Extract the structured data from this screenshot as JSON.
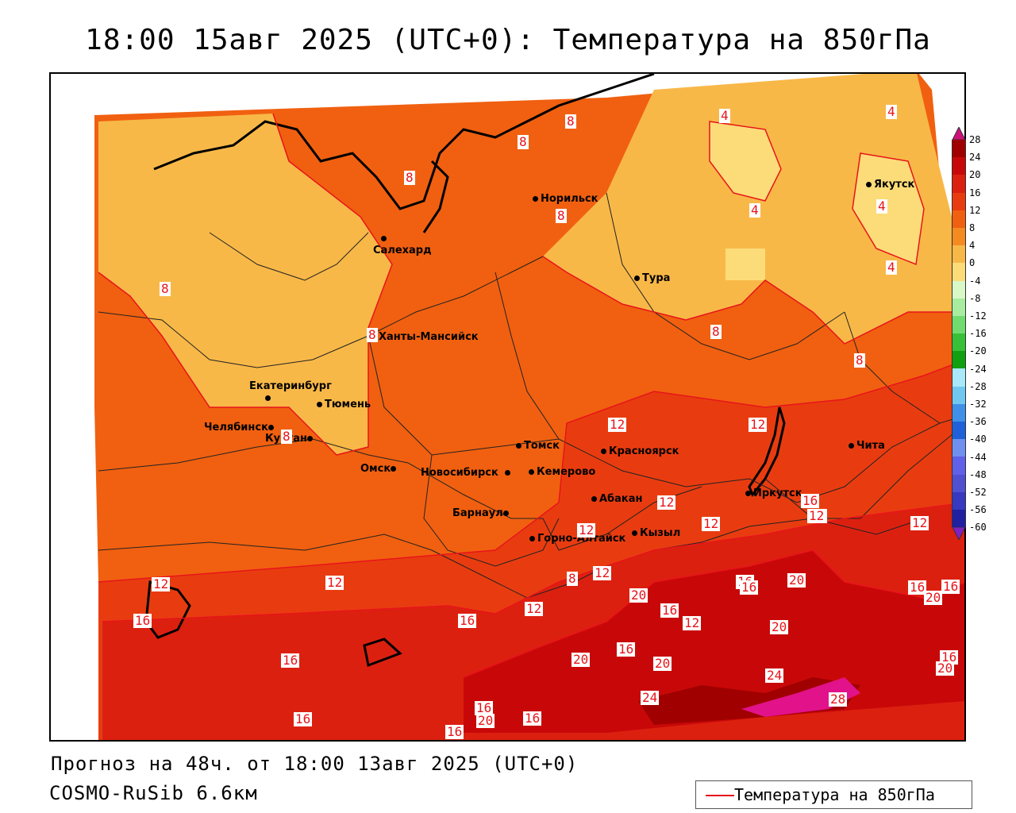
{
  "title": "18:00 15авг 2025 (UTC+0): Температура на 850гПа",
  "footer": {
    "forecast": "Прогноз на 48ч. от 18:00 13авг 2025 (UTC+0)",
    "model": "COSMO-RuSib 6.6км"
  },
  "legend": {
    "label": "Температура на 850гПа",
    "color": "#e8141a"
  },
  "color_scale": {
    "ticks": [
      "28",
      "24",
      "20",
      "16",
      "12",
      "8",
      "4",
      "0",
      "-4",
      "-8",
      "-12",
      "-16",
      "-20",
      "-24",
      "-28",
      "-32",
      "-36",
      "-40",
      "-44",
      "-48",
      "-52",
      "-56",
      "-60"
    ],
    "colors": [
      "#a00000",
      "#c80808",
      "#dc2010",
      "#e83c10",
      "#f06010",
      "#f48a20",
      "#f8b848",
      "#fcdc78",
      "#d8f8c8",
      "#a8eca0",
      "#70dc70",
      "#38c038",
      "#10a010",
      "#a8e8f8",
      "#70c8f0",
      "#4090e8",
      "#2060d8",
      "#7090f0",
      "#6060e8",
      "#5050d0",
      "#3838c0",
      "#2020a0"
    ],
    "top_arrow": "#d0107a",
    "bottom_arrow": "#8020c0"
  },
  "cities": [
    {
      "name": "Норильск"
    },
    {
      "name": "Салехард"
    },
    {
      "name": "Тура"
    },
    {
      "name": "Якутск"
    },
    {
      "name": "Ханты-Мансийск"
    },
    {
      "name": "Екатеринбург"
    },
    {
      "name": "Тюмень"
    },
    {
      "name": "Челябинск"
    },
    {
      "name": "Курган"
    },
    {
      "name": "Омск"
    },
    {
      "name": "Новосибирск"
    },
    {
      "name": "Томск"
    },
    {
      "name": "Кемерово"
    },
    {
      "name": "Барнаул"
    },
    {
      "name": "Горно-Алтайск"
    },
    {
      "name": "Красноярск"
    },
    {
      "name": "Абакан"
    },
    {
      "name": "Кызыл"
    },
    {
      "name": "Иркутск"
    },
    {
      "name": "Чита"
    }
  ],
  "contour_labels": [
    "8",
    "8",
    "8",
    "4",
    "4",
    "4",
    "4",
    "4",
    "8",
    "8",
    "8",
    "8",
    "8",
    "8",
    "12",
    "12",
    "12",
    "12",
    "12",
    "12",
    "16",
    "12",
    "12",
    "12",
    "12",
    "16",
    "20",
    "16",
    "20",
    "20",
    "16",
    "16",
    "12",
    "16",
    "12",
    "20",
    "16",
    "20",
    "16",
    "20",
    "16",
    "24",
    "24",
    "20",
    "28",
    "16",
    "16",
    "16",
    "20",
    "16",
    "12",
    "8",
    "16",
    "16"
  ]
}
